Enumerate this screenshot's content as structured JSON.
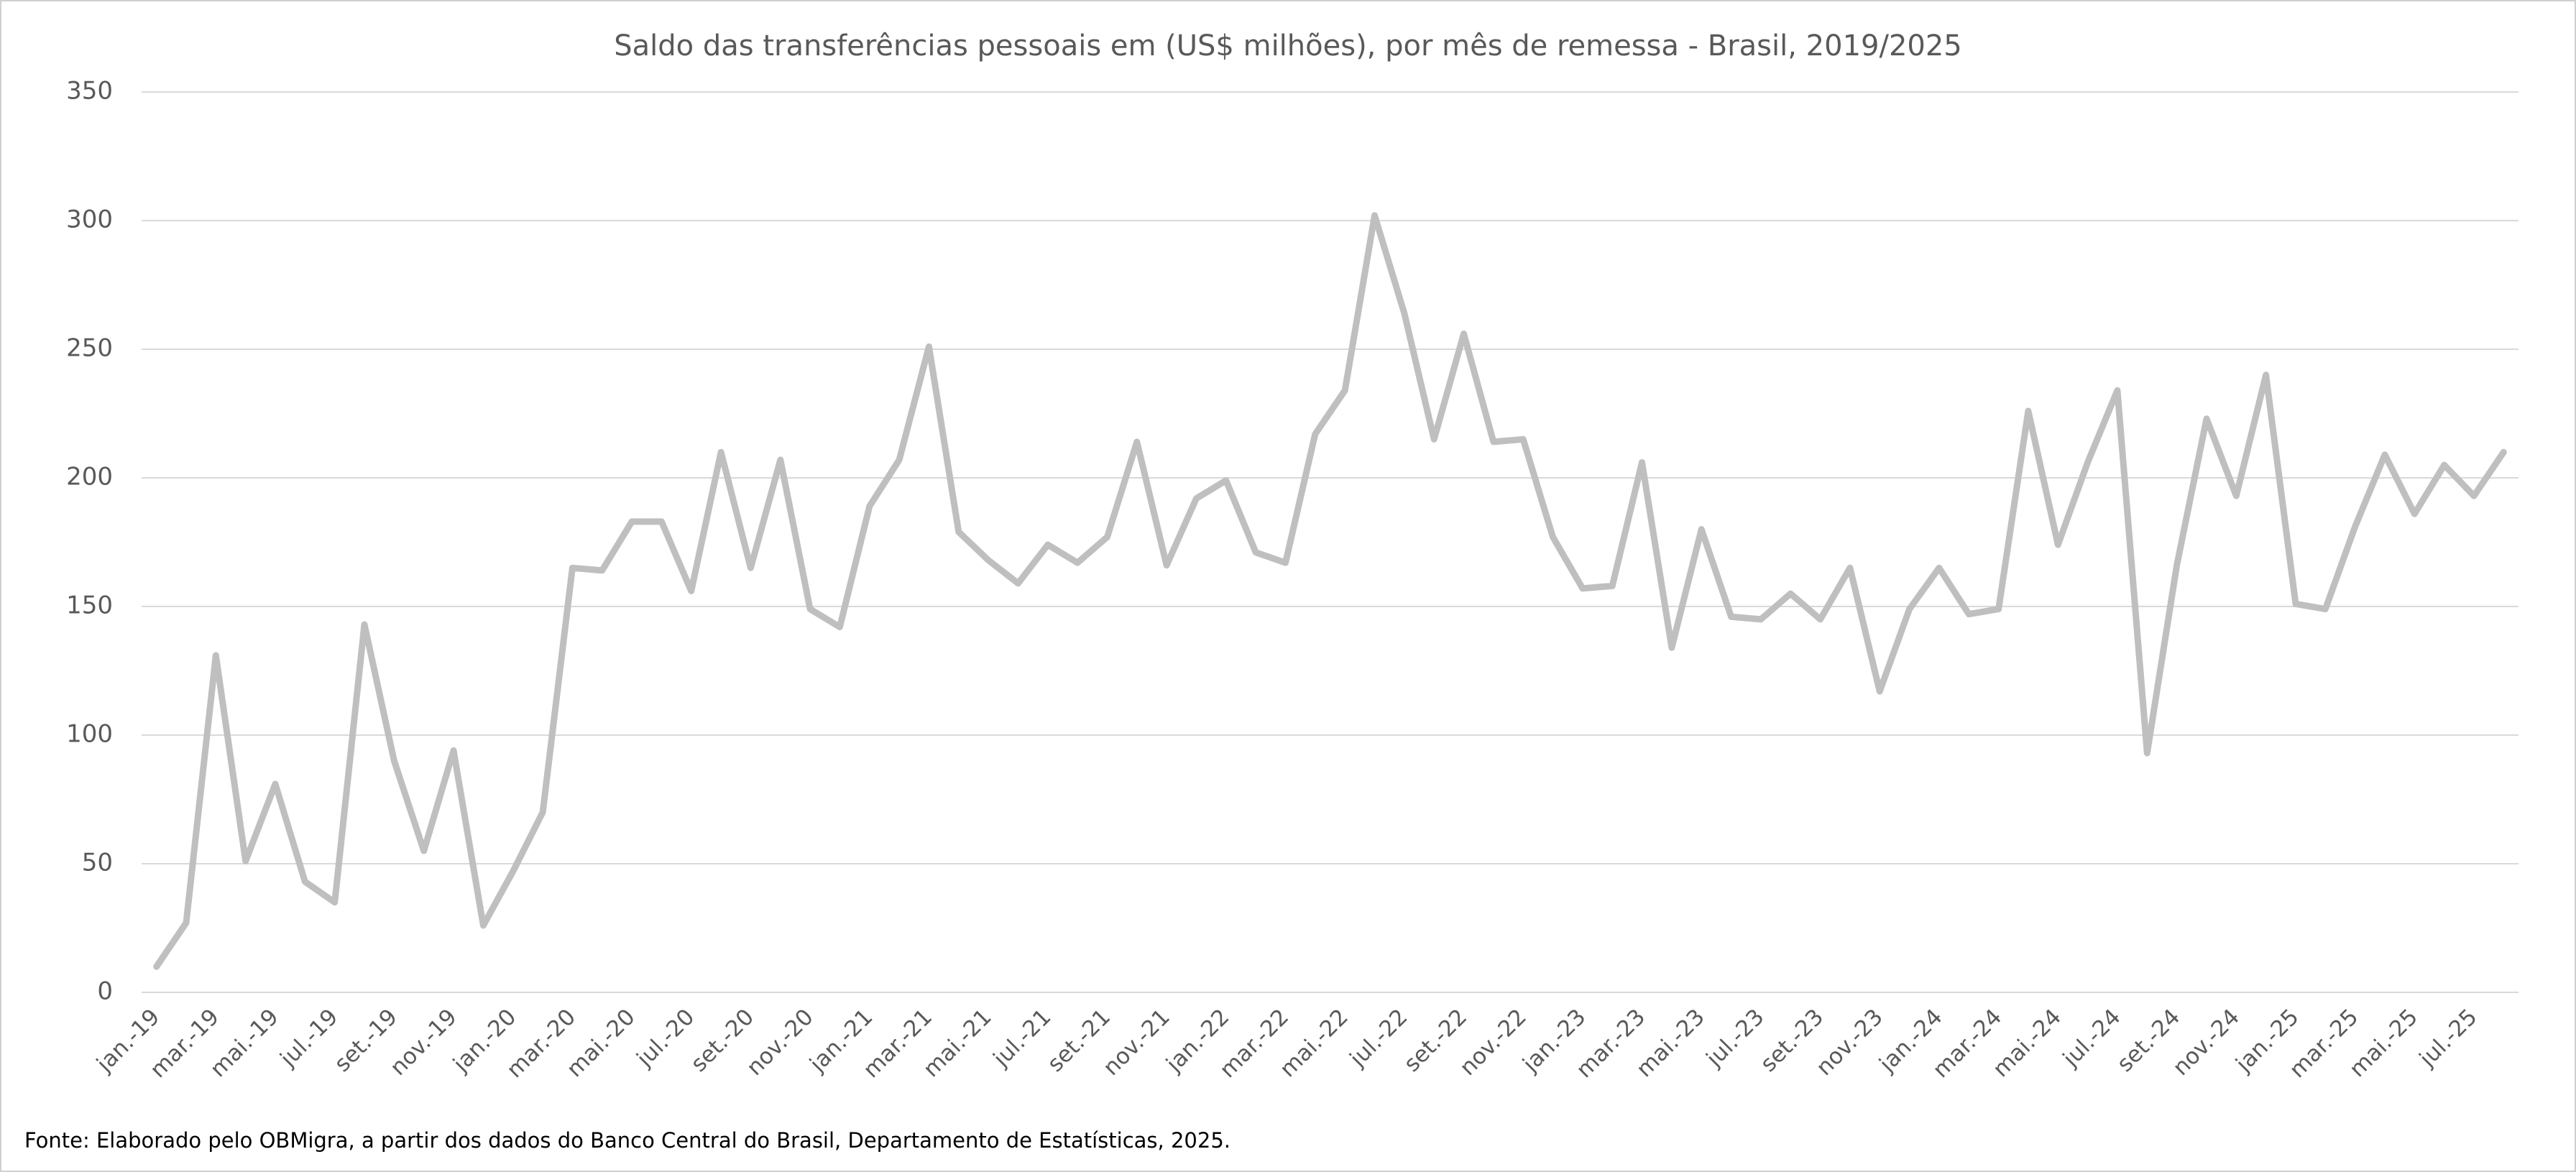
{
  "chart_data": {
    "type": "line",
    "title": "Saldo das transferências pessoais em (US$ milhões), por mês de remessa - Brasil, 2019/2025",
    "source": "Fonte:  Elaborado pelo OBMigra, a partir dos dados do Banco Central do Brasil, Departamento de Estatísticas, 2025.",
    "categories": [
      "jan.-19",
      null,
      "mar.-19",
      null,
      "mai.-19",
      null,
      "jul.-19",
      null,
      "set.-19",
      null,
      "nov.-19",
      null,
      "jan.-20",
      null,
      "mar.-20",
      null,
      "mai.-20",
      null,
      "jul.-20",
      null,
      "set.-20",
      null,
      "nov.-20",
      null,
      "jan.-21",
      null,
      "mar.-21",
      null,
      "mai.-21",
      null,
      "jul.-21",
      null,
      "set.-21",
      null,
      "nov.-21",
      null,
      "jan.-22",
      null,
      "mar.-22",
      null,
      "mai.-22",
      null,
      "jul.-22",
      null,
      "set.-22",
      null,
      "nov.-22",
      null,
      "jan.-23",
      null,
      "mar.-23",
      null,
      "mai.-23",
      null,
      "jul.-23",
      null,
      "set.-23",
      null,
      "nov.-23",
      null,
      "jan.-24",
      null,
      "mar.-24",
      null,
      "mai.-24",
      null,
      "jul.-24",
      null,
      "set.-24",
      null,
      "nov.-24",
      null,
      "jan.-25",
      null,
      "mar.-25",
      null,
      "mai.-25",
      null,
      "jul.-25",
      null
    ],
    "values": [
      10,
      27,
      131,
      51,
      81,
      43,
      35,
      143,
      90,
      55,
      94,
      26,
      47,
      70,
      165,
      164,
      183,
      183,
      156,
      210,
      165,
      207,
      149,
      142,
      189,
      207,
      251,
      179,
      168,
      159,
      174,
      167,
      177,
      214,
      166,
      192,
      199,
      171,
      167,
      217,
      234,
      302,
      264,
      215,
      256,
      214,
      215,
      177,
      157,
      158,
      206,
      134,
      180,
      146,
      145,
      155,
      145,
      165,
      117,
      149,
      165,
      147,
      149,
      226,
      174,
      206,
      234,
      93,
      166,
      223,
      193,
      240,
      151,
      149,
      181,
      209,
      186,
      205,
      193,
      210
    ],
    "color": "#bfbfbf",
    "ylim": [
      0,
      350
    ],
    "yticks": [
      0,
      50,
      100,
      150,
      200,
      250,
      300,
      350
    ],
    "grid": true
  }
}
